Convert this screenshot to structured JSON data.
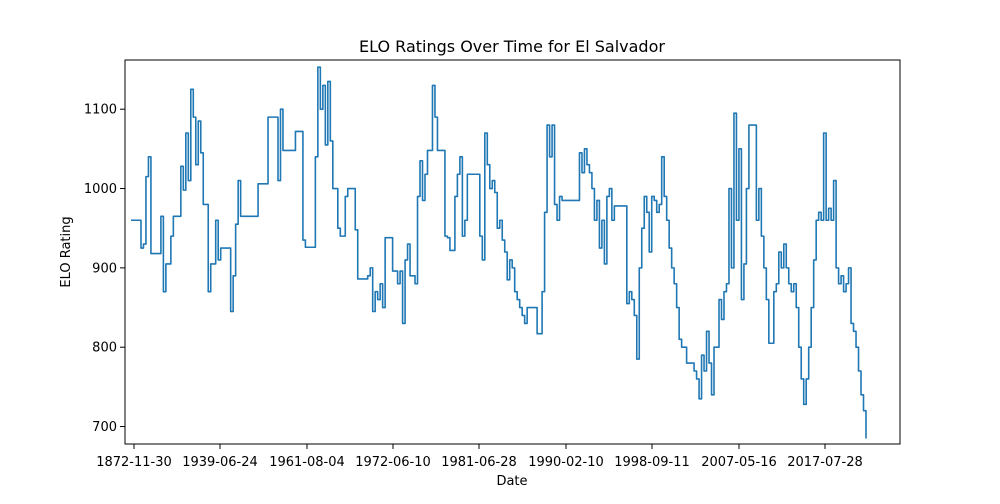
{
  "chart_data": {
    "type": "line",
    "title": "ELO Ratings Over Time for El Salvador",
    "xlabel": "Date",
    "ylabel": "ELO Rating",
    "x_tick_labels": [
      "1872-11-30",
      "1939-06-24",
      "1961-08-04",
      "1972-06-10",
      "1981-06-28",
      "1990-02-10",
      "1998-09-11",
      "2007-05-16",
      "2017-07-28"
    ],
    "y_ticks": [
      700,
      800,
      900,
      1000,
      1100
    ],
    "ylim": [
      678,
      1162
    ],
    "grid": false,
    "line_color": "#1f77b4",
    "series": [
      {
        "values": [
          960,
          960,
          960,
          960,
          925,
          930,
          1015,
          1040,
          918,
          918,
          918,
          918,
          965,
          870,
          905,
          905,
          940,
          965,
          965,
          965,
          1028,
          998,
          1070,
          1010,
          1125,
          1090,
          1030,
          1085,
          1045,
          980,
          980,
          870,
          905,
          905,
          960,
          910,
          925,
          925,
          925,
          925,
          845,
          890,
          955,
          1010,
          965,
          965,
          965,
          965,
          965,
          965,
          965,
          1006,
          1006,
          1006,
          1006,
          1090,
          1090,
          1090,
          1090,
          1010,
          1100,
          1048,
          1048,
          1048,
          1048,
          1048,
          1072,
          1072,
          1072,
          935,
          926,
          926,
          926,
          926,
          1040,
          1153,
          1100,
          1130,
          1055,
          1135,
          1060,
          1000,
          1000,
          950,
          940,
          940,
          990,
          1000,
          1000,
          1000,
          948,
          886,
          886,
          886,
          886,
          890,
          900,
          845,
          870,
          860,
          880,
          850,
          938,
          938,
          938,
          896,
          896,
          880,
          896,
          830,
          910,
          930,
          890,
          890,
          880,
          990,
          1035,
          985,
          1018,
          1048,
          1048,
          1130,
          1090,
          1048,
          1048,
          1048,
          940,
          938,
          922,
          922,
          990,
          1018,
          1040,
          940,
          960,
          1018,
          1018,
          1018,
          1018,
          1018,
          940,
          910,
          1070,
          1030,
          1000,
          1010,
          995,
          950,
          960,
          935,
          920,
          885,
          910,
          900,
          870,
          860,
          850,
          840,
          830,
          850,
          850,
          850,
          850,
          817,
          817,
          870,
          970,
          1080,
          1040,
          1080,
          980,
          960,
          990,
          985,
          985,
          985,
          985,
          985,
          985,
          985,
          1045,
          1020,
          1050,
          1030,
          1020,
          1000,
          960,
          985,
          925,
          960,
          905,
          990,
          1000,
          960,
          978,
          978,
          978,
          978,
          978,
          855,
          870,
          860,
          840,
          785,
          900,
          950,
          990,
          970,
          920,
          990,
          985,
          970,
          980,
          1040,
          990,
          960,
          925,
          900,
          880,
          850,
          810,
          800,
          800,
          780,
          780,
          780,
          770,
          760,
          735,
          790,
          770,
          820,
          780,
          740,
          800,
          800,
          860,
          835,
          870,
          880,
          1000,
          900,
          1095,
          960,
          1050,
          860,
          905,
          1000,
          1080,
          1080,
          1080,
          960,
          1000,
          940,
          900,
          860,
          805,
          805,
          870,
          880,
          920,
          900,
          930,
          900,
          880,
          870,
          880,
          850,
          800,
          760,
          728,
          760,
          800,
          850,
          910,
          960,
          970,
          960,
          1070,
          960,
          975,
          960,
          1010,
          900,
          880,
          890,
          870,
          880,
          900,
          830,
          820,
          800,
          770,
          740,
          720,
          685
        ]
      }
    ]
  }
}
